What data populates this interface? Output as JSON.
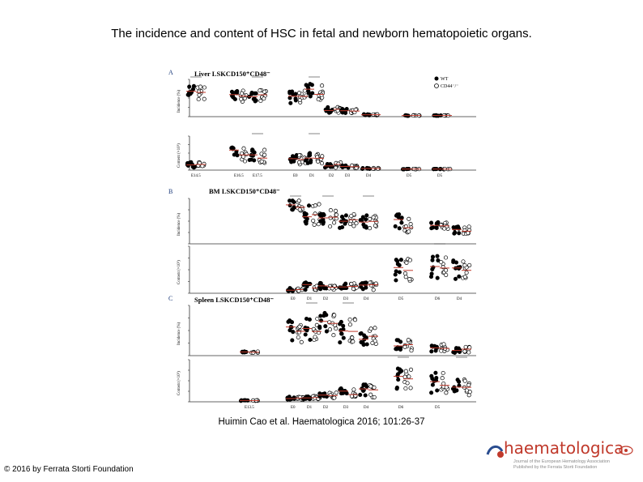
{
  "slide": {
    "title": "The incidence and content of HSC in fetal and newborn hematopoietic organs.",
    "citation": "Huimin Cao et al. Haematologica 2016; 101:26-37",
    "copyright": "© 2016 by Ferrata Storti Foundation"
  },
  "logo": {
    "word": "haematologica",
    "line1": "Journal of the European Hematology Association",
    "line2": "Published by the Ferrata Storti Foundation"
  },
  "figure": {
    "panels": [
      {
        "letter": "A",
        "title": "Liver LSKCD150⁺CD48⁻"
      },
      {
        "letter": "B",
        "title": "BM LSKCD150⁺CD48⁻"
      },
      {
        "letter": "C",
        "title": "Spleen LSKCD150⁺CD48⁻"
      }
    ],
    "legend": {
      "wt": "WT",
      "ko": "CD44⁻/⁻"
    },
    "ylabels": {
      "incidence": "Incidence (%)",
      "content": "Content (×10³)"
    },
    "xticks": {
      "liver": [
        "E14.5",
        "E16.5",
        "E17.5",
        "E0",
        "D1",
        "D2",
        "D3",
        "D4",
        "D5",
        "D5"
      ],
      "bm": [
        "E0",
        "D1",
        "D2",
        "D3",
        "D4",
        "D5",
        "D6",
        "D4"
      ],
      "spleen": [
        "E13.5",
        "E0",
        "D1",
        "D2",
        "D3",
        "D4",
        "D6",
        "D5"
      ]
    },
    "colors": {
      "wt": "#000000",
      "ko": "#ffffff",
      "mean": "#c0392b",
      "axis": "#333333"
    }
  }
}
